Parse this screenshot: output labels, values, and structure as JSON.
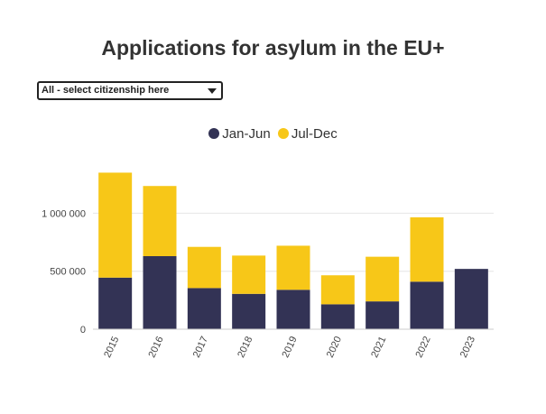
{
  "title": "Applications for asylum in the EU+",
  "selector": {
    "value": "All - select citizenship here"
  },
  "colors": {
    "jan_jun": "#333355",
    "jul_dec": "#f7c718",
    "grid": "#e6e6e6",
    "axis": "#cccccc"
  },
  "chart_data": {
    "type": "bar",
    "stacked": true,
    "title": "Applications for asylum in the EU+",
    "categories": [
      "2015",
      "2016",
      "2017",
      "2018",
      "2019",
      "2020",
      "2021",
      "2022",
      "2023"
    ],
    "series": [
      {
        "name": "Jan-Jun",
        "color": "#333355",
        "values": [
          445000,
          630000,
          355000,
          305000,
          340000,
          215000,
          240000,
          410000,
          520000
        ]
      },
      {
        "name": "Jul-Dec",
        "color": "#f7c718",
        "values": [
          905000,
          605000,
          355000,
          330000,
          380000,
          250000,
          385000,
          555000,
          0
        ]
      }
    ],
    "yticks": [
      0,
      500000,
      1000000
    ],
    "ytick_labels": [
      "0",
      "500 000",
      "1 000 000"
    ],
    "ylim": [
      0,
      1400000
    ],
    "xlabel": "",
    "ylabel": "",
    "grid": true,
    "legend_position": "top-center"
  }
}
